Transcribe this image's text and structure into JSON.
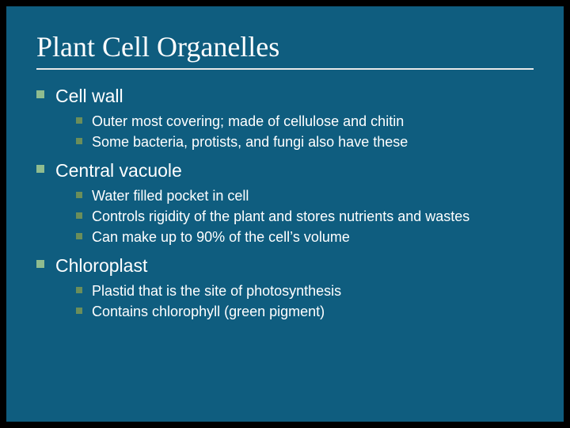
{
  "slide": {
    "title": "Plant Cell Organelles",
    "background_color": "#0f5d7f",
    "frame_color": "#000000",
    "title_color": "#ffffff",
    "title_font": "Times New Roman",
    "title_fontsize": 36,
    "divider_color": "#e8e8e8",
    "text_color": "#ffffff",
    "bullet_level1_color": "#8fbc8f",
    "bullet_level2_color": "#6b8e5a",
    "level1_fontsize": 23,
    "level2_fontsize": 18,
    "sections": [
      {
        "heading": "Cell wall",
        "items": [
          "Outer most covering; made of cellulose and chitin",
          "Some bacteria, protists, and fungi also have these"
        ]
      },
      {
        "heading": "Central vacuole",
        "items": [
          "Water filled pocket in cell",
          "Controls rigidity of the plant and stores nutrients and wastes",
          "Can make up to 90% of the cell’s volume"
        ]
      },
      {
        "heading": "Chloroplast",
        "items": [
          "Plastid that is the site of photosynthesis",
          "Contains chlorophyll (green pigment)"
        ]
      }
    ]
  }
}
